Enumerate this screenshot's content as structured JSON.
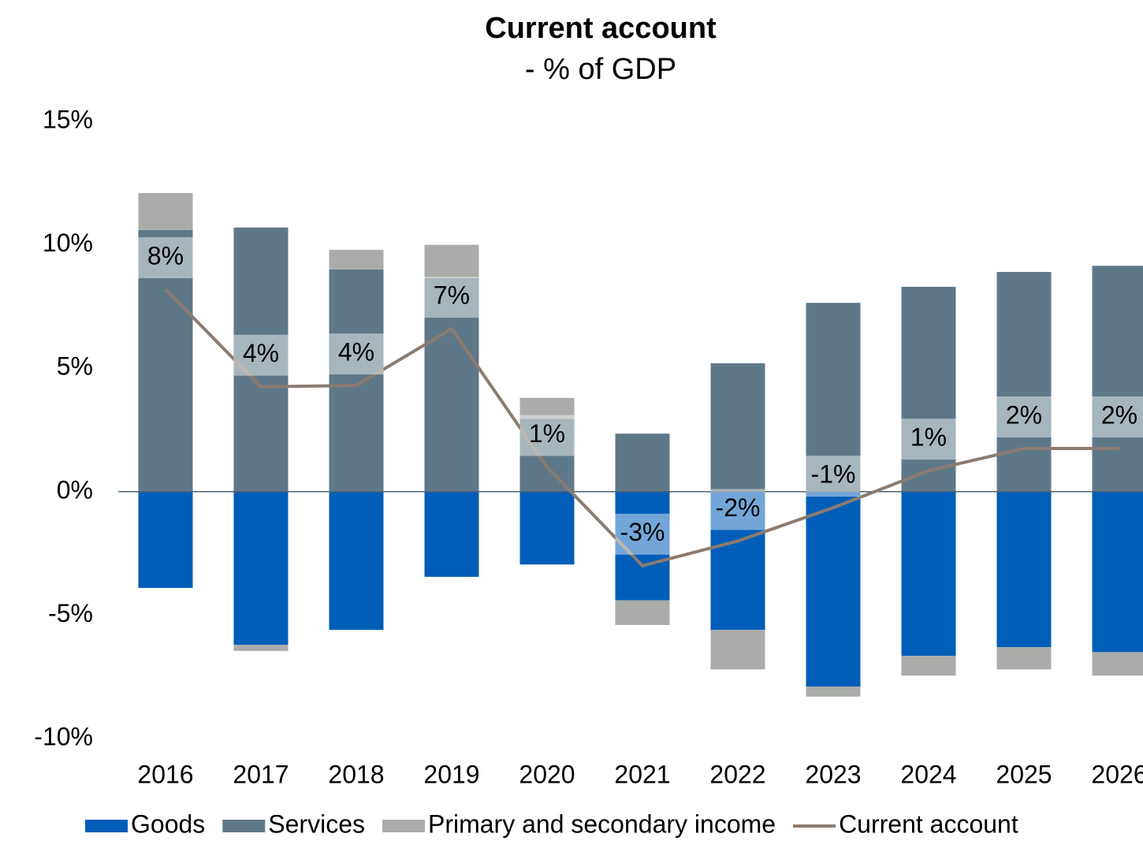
{
  "chart_data": {
    "type": "stacked-bar-line",
    "title": "Current account",
    "subtitle": "- % of GDP",
    "categories": [
      "2016",
      "2017",
      "2018",
      "2019",
      "2020",
      "2021",
      "2022",
      "2023",
      "2024",
      "2025",
      "2026"
    ],
    "series": [
      {
        "name": "Goods",
        "color": "#005eb8",
        "kind": "bar",
        "values": [
          -3.9,
          -6.2,
          -5.6,
          -3.45,
          -2.95,
          -4.4,
          -5.6,
          -7.9,
          -6.65,
          -6.3,
          -6.5
        ]
      },
      {
        "name": "Services",
        "color": "#5f7888",
        "kind": "bar",
        "values": [
          10.6,
          10.7,
          9.0,
          8.65,
          2.95,
          2.35,
          5.2,
          7.65,
          8.3,
          8.9,
          9.15
        ]
      },
      {
        "name": "Primary and secondary income",
        "color": "#a9aca8",
        "kind": "bar",
        "values": [
          1.5,
          -0.25,
          0.8,
          1.35,
          0.85,
          -1.0,
          -1.6,
          -0.4,
          -0.8,
          -0.9,
          -0.95
        ]
      },
      {
        "name": "Current account",
        "color": "#8c7b70",
        "kind": "line",
        "values": [
          8.2,
          4.25,
          4.3,
          6.6,
          1.0,
          -3.0,
          -2.0,
          -0.65,
          0.85,
          1.75,
          1.75
        ],
        "value_labels": [
          "8%",
          "4%",
          "4%",
          "7%",
          "1%",
          "-3%",
          "-2%",
          "-1%",
          "1%",
          "2%",
          "2%"
        ]
      }
    ],
    "ylim": [
      -10,
      15
    ],
    "yticks": [
      {
        "value": -10,
        "label": "-10%"
      },
      {
        "value": -5,
        "label": "-5%"
      },
      {
        "value": 0,
        "label": "0%"
      },
      {
        "value": 5,
        "label": "5%"
      },
      {
        "value": 10,
        "label": "10%"
      },
      {
        "value": 15,
        "label": "15%"
      }
    ],
    "legend": "bottom"
  }
}
